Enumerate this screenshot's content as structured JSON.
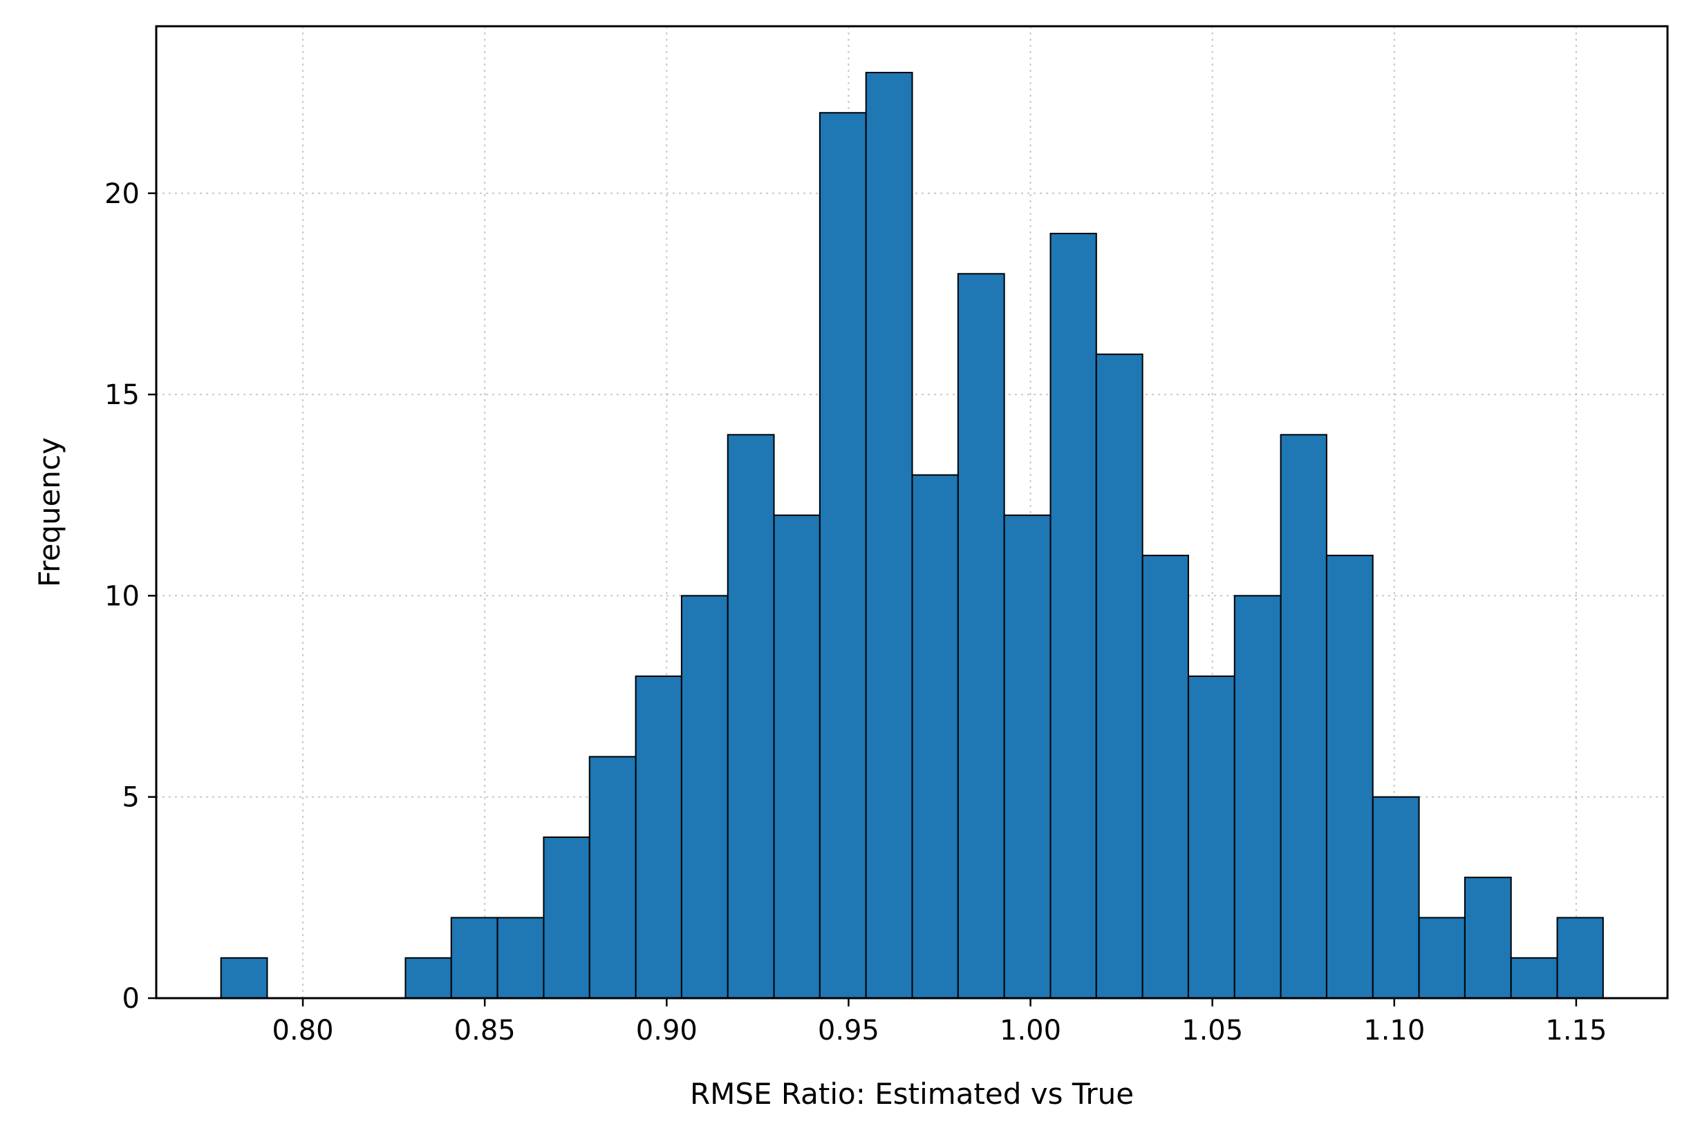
{
  "chart_data": {
    "type": "bar",
    "histogram": true,
    "title": "",
    "xlabel": "RMSE Ratio: Estimated vs True",
    "ylabel": "Frequency",
    "xlim": [
      0.7597,
      1.1751
    ],
    "ylim": [
      0,
      24.15
    ],
    "grid": true,
    "bar_color": "#1f77b4",
    "edge_color": "#000000",
    "bin_width": 0.01266,
    "bins": [
      {
        "x0": 0.7775,
        "x1": 0.7902,
        "count": 1
      },
      {
        "x0": 0.7902,
        "x1": 0.8028,
        "count": 0
      },
      {
        "x0": 0.8028,
        "x1": 0.8155,
        "count": 0
      },
      {
        "x0": 0.8155,
        "x1": 0.8282,
        "count": 0
      },
      {
        "x0": 0.8282,
        "x1": 0.8408,
        "count": 1
      },
      {
        "x0": 0.8408,
        "x1": 0.8535,
        "count": 2
      },
      {
        "x0": 0.8535,
        "x1": 0.8662,
        "count": 2
      },
      {
        "x0": 0.8662,
        "x1": 0.8788,
        "count": 4
      },
      {
        "x0": 0.8788,
        "x1": 0.8915,
        "count": 6
      },
      {
        "x0": 0.8915,
        "x1": 0.9041,
        "count": 8
      },
      {
        "x0": 0.9041,
        "x1": 0.9168,
        "count": 10
      },
      {
        "x0": 0.9168,
        "x1": 0.9295,
        "count": 14
      },
      {
        "x0": 0.9295,
        "x1": 0.9421,
        "count": 12
      },
      {
        "x0": 0.9421,
        "x1": 0.9548,
        "count": 22
      },
      {
        "x0": 0.9548,
        "x1": 0.9675,
        "count": 23
      },
      {
        "x0": 0.9675,
        "x1": 0.9801,
        "count": 13
      },
      {
        "x0": 0.9801,
        "x1": 0.9928,
        "count": 18
      },
      {
        "x0": 0.9928,
        "x1": 1.0055,
        "count": 12
      },
      {
        "x0": 1.0055,
        "x1": 1.0181,
        "count": 19
      },
      {
        "x0": 1.0181,
        "x1": 1.0308,
        "count": 16
      },
      {
        "x0": 1.0308,
        "x1": 1.0434,
        "count": 11
      },
      {
        "x0": 1.0434,
        "x1": 1.0561,
        "count": 8
      },
      {
        "x0": 1.0561,
        "x1": 1.0688,
        "count": 10
      },
      {
        "x0": 1.0688,
        "x1": 1.0814,
        "count": 14
      },
      {
        "x0": 1.0814,
        "x1": 1.0941,
        "count": 11
      },
      {
        "x0": 1.0941,
        "x1": 1.1068,
        "count": 5
      },
      {
        "x0": 1.1068,
        "x1": 1.1194,
        "count": 2
      },
      {
        "x0": 1.1194,
        "x1": 1.1321,
        "count": 3
      },
      {
        "x0": 1.1321,
        "x1": 1.1448,
        "count": 1
      },
      {
        "x0": 1.1448,
        "x1": 1.1574,
        "count": 2
      }
    ],
    "x_ticks": [
      0.8,
      0.85,
      0.9,
      0.95,
      1.0,
      1.05,
      1.1,
      1.15
    ],
    "x_tick_labels": [
      "0.80",
      "0.85",
      "0.90",
      "0.95",
      "1.00",
      "1.05",
      "1.10",
      "1.15"
    ],
    "y_ticks": [
      0,
      5,
      10,
      15,
      20
    ],
    "y_tick_labels": [
      "0",
      "5",
      "10",
      "15",
      "20"
    ]
  }
}
